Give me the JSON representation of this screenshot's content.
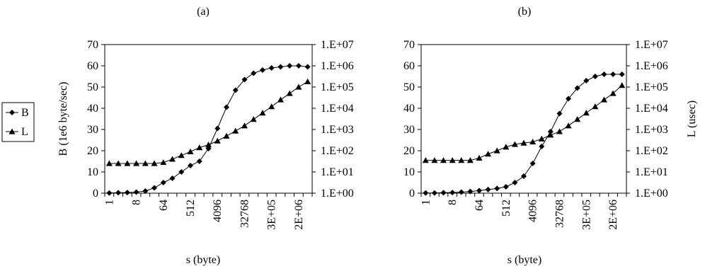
{
  "chart_data": [
    {
      "type": "line",
      "title": "(a)",
      "xlabel": "s (byte)",
      "ylabel": "B (1e6 byte/sec)",
      "ylabel_right": "",
      "x_ticks": [
        "1",
        "8",
        "64",
        "512",
        "4096",
        "32768",
        "3E+05",
        "2E+06"
      ],
      "ylim": [
        0,
        70
      ],
      "y_ticks": [
        "0",
        "10",
        "20",
        "30",
        "40",
        "50",
        "60",
        "70"
      ],
      "y2_scale": "log",
      "y2_ticks": [
        "1.E+00",
        "1.E+01",
        "1.E+02",
        "1.E+03",
        "1.E+04",
        "1.E+05",
        "1.E+06",
        "1.E+07"
      ],
      "legend": [
        "B",
        "L"
      ],
      "series": [
        {
          "name": "B",
          "axis": "left",
          "marker": "diamond",
          "values": [
            0.1,
            0.2,
            0.3,
            0.5,
            1,
            2.5,
            5,
            7,
            10,
            13,
            15,
            21,
            30.5,
            40.5,
            48.5,
            53.5,
            56.5,
            58,
            59,
            59.5,
            60,
            60,
            59.5
          ]
        },
        {
          "name": "L",
          "axis": "right",
          "marker": "triangle",
          "values": [
            25,
            25,
            25,
            25,
            25,
            25,
            28,
            40,
            60,
            90,
            140,
            190,
            290,
            490,
            850,
            1500,
            3000,
            6000,
            12000,
            25000,
            50000,
            100000,
            180000
          ]
        }
      ]
    },
    {
      "type": "line",
      "title": "(b)",
      "xlabel": "s (byte)",
      "ylabel": "",
      "ylabel_right": "L (usec)",
      "x_ticks": [
        "1",
        "8",
        "64",
        "512",
        "4096",
        "32768",
        "3E+05",
        "2E+06"
      ],
      "ylim": [
        0,
        70
      ],
      "y_ticks": [
        "0",
        "10",
        "20",
        "30",
        "40",
        "50",
        "60",
        "70"
      ],
      "y2_scale": "log",
      "y2_ticks": [
        "1.E+00",
        "1.E+01",
        "1.E+02",
        "1.E+03",
        "1.E+04",
        "1.E+05",
        "1.E+06",
        "1.E+07"
      ],
      "legend": [],
      "series": [
        {
          "name": "B",
          "axis": "left",
          "marker": "diamond",
          "values": [
            0.1,
            0.1,
            0.2,
            0.3,
            0.5,
            0.8,
            1.2,
            1.7,
            2.2,
            3,
            5,
            8,
            14,
            22,
            29,
            37.5,
            44.5,
            49.5,
            53,
            55,
            56,
            56,
            56
          ]
        },
        {
          "name": "L",
          "axis": "right",
          "marker": "triangle",
          "values": [
            35,
            35,
            35,
            35,
            35,
            35,
            45,
            70,
            100,
            150,
            200,
            230,
            260,
            360,
            550,
            800,
            1500,
            3000,
            6000,
            12000,
            25000,
            50000,
            120000
          ]
        }
      ]
    }
  ]
}
